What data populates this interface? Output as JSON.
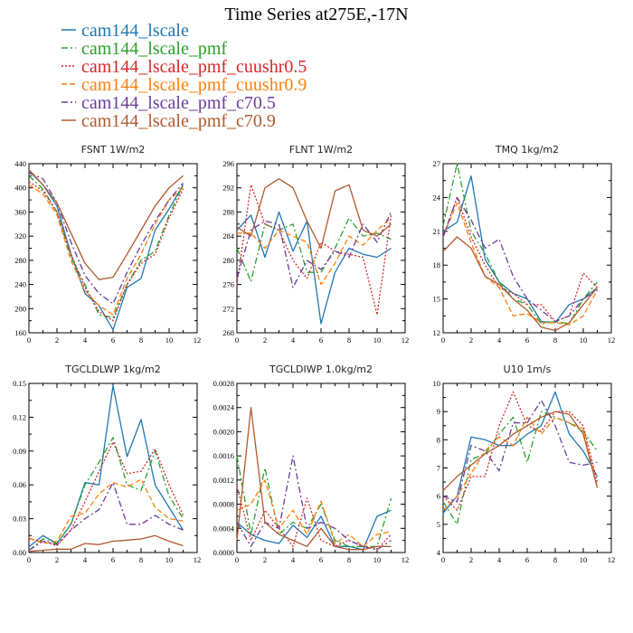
{
  "title": "Time Series at275E,-17N",
  "colors": {
    "cam144_lscale": "#1f77b4",
    "cam144_lscale_pmf": "#2ca02c",
    "cam144_lscale_pmf_cuushr0.5": "#d62728",
    "cam144_lscale_pmf_cuushr0.9": "#ff7f0e",
    "cam144_lscale_pmf_c70.5": "#6a3d9a",
    "cam144_lscale_pmf_c70.9": "#b05a2e"
  },
  "legend": [
    {
      "label": "cam144_lscale",
      "color": "#1f77b4",
      "dash": "solid"
    },
    {
      "label": "cam144_lscale_pmf",
      "color": "#2ca02c",
      "dash": "dashdot"
    },
    {
      "label": "cam144_lscale_pmf_cuushr0.5",
      "color": "#d62728",
      "dash": "dotted"
    },
    {
      "label": "cam144_lscale_pmf_cuushr0.9",
      "color": "#ff7f0e",
      "dash": "dashed"
    },
    {
      "label": "cam144_lscale_pmf_c70.5",
      "color": "#6a3d9a",
      "dash": "dashdot"
    },
    {
      "label": "cam144_lscale_pmf_c70.9",
      "color": "#b05a2e",
      "dash": "solid"
    }
  ],
  "chart_data": [
    {
      "type": "line",
      "title": "FSNT   1W/m2",
      "x": [
        0,
        1,
        2,
        3,
        4,
        5,
        6,
        7,
        8,
        9,
        10,
        11
      ],
      "xlim": [
        0,
        12
      ],
      "xticks": [
        "0",
        "2",
        "4",
        "6",
        "8",
        "10",
        "12"
      ],
      "ylim": [
        160,
        440
      ],
      "yticks": [
        "160",
        "200",
        "240",
        "280",
        "320",
        "360",
        "400",
        "440"
      ],
      "series": [
        {
          "name": "cam144_lscale",
          "values": [
            428,
            405,
            370,
            290,
            225,
            205,
            165,
            235,
            250,
            330,
            365,
            405
          ]
        },
        {
          "name": "cam144_lscale_pmf",
          "values": [
            420,
            398,
            360,
            285,
            240,
            190,
            185,
            240,
            280,
            295,
            355,
            405
          ]
        },
        {
          "name": "cam144_lscale_pmf_cuushr0.5",
          "values": [
            410,
            395,
            360,
            290,
            235,
            195,
            180,
            240,
            275,
            290,
            350,
            398
          ]
        },
        {
          "name": "cam144_lscale_pmf_cuushr0.9",
          "values": [
            405,
            390,
            355,
            280,
            230,
            205,
            190,
            250,
            290,
            340,
            380,
            400
          ]
        },
        {
          "name": "cam144_lscale_pmf_c70.5",
          "values": [
            425,
            415,
            375,
            310,
            255,
            225,
            208,
            260,
            305,
            345,
            380,
            408
          ]
        },
        {
          "name": "cam144_lscale_pmf_c70.9",
          "values": [
            430,
            405,
            375,
            325,
            275,
            248,
            252,
            290,
            330,
            370,
            400,
            420
          ]
        }
      ]
    },
    {
      "type": "line",
      "title": "FLNT   1W/m2",
      "x": [
        0,
        1,
        2,
        3,
        4,
        5,
        6,
        7,
        8,
        9,
        10,
        11
      ],
      "xlim": [
        0,
        12
      ],
      "xticks": [
        "0",
        "2",
        "4",
        "6",
        "8",
        "10",
        "12"
      ],
      "ylim": [
        268,
        296
      ],
      "yticks": [
        "268",
        "272",
        "276",
        "280",
        "284",
        "288",
        "292",
        "296"
      ],
      "series": [
        {
          "name": "cam144_lscale",
          "values": [
            285,
            287.5,
            280.5,
            288,
            281.5,
            286.5,
            269.5,
            278,
            282,
            281,
            280.5,
            282
          ]
        },
        {
          "name": "cam144_lscale_pmf",
          "values": [
            282,
            276.5,
            286,
            285,
            286,
            278,
            278,
            282,
            287,
            284,
            284.5,
            283.5
          ]
        },
        {
          "name": "cam144_lscale_pmf_cuushr0.5",
          "values": [
            276,
            292.5,
            286,
            285,
            280,
            277,
            283,
            281.5,
            281,
            280.5,
            271,
            287.5
          ]
        },
        {
          "name": "cam144_lscale_pmf_cuushr0.9",
          "values": [
            284.5,
            284.5,
            282,
            285,
            284,
            283,
            276,
            279.5,
            284,
            282.5,
            285,
            287
          ]
        },
        {
          "name": "cam144_lscale_pmf_c70.5",
          "values": [
            277,
            285,
            286.5,
            286,
            275.5,
            280,
            278.5,
            281.5,
            280.5,
            286,
            283,
            288
          ]
        },
        {
          "name": "cam144_lscale_pmf_c70.9",
          "values": [
            285.5,
            284,
            292,
            293.5,
            292,
            286.5,
            282,
            291.5,
            292.5,
            285,
            284,
            286
          ]
        }
      ]
    },
    {
      "type": "line",
      "title": "TMQ   1kg/m2",
      "x": [
        0,
        1,
        2,
        3,
        4,
        5,
        6,
        7,
        8,
        9,
        10,
        11
      ],
      "xlim": [
        0,
        12
      ],
      "xticks": [
        "0",
        "2",
        "4",
        "6",
        "8",
        "10",
        "12"
      ],
      "ylim": [
        12,
        27
      ],
      "yticks": [
        "12",
        "15",
        "18",
        "21",
        "24",
        "27"
      ],
      "series": [
        {
          "name": "cam144_lscale",
          "values": [
            21,
            21.8,
            25.9,
            18.5,
            16.5,
            15.5,
            15,
            13,
            12.9,
            14.5,
            15,
            16
          ]
        },
        {
          "name": "cam144_lscale_pmf",
          "values": [
            21.5,
            27,
            21,
            19,
            16.5,
            15,
            14.5,
            12.8,
            13,
            12.8,
            15,
            16.5
          ]
        },
        {
          "name": "cam144_lscale_pmf_cuushr0.5",
          "values": [
            20.5,
            24,
            20.5,
            18,
            16,
            15.5,
            14.5,
            14.5,
            13,
            13.5,
            17.3,
            16
          ]
        },
        {
          "name": "cam144_lscale_pmf_cuushr0.9",
          "values": [
            20.5,
            23.5,
            20,
            17,
            16,
            13.5,
            13.7,
            12.9,
            12.9,
            12.7,
            13.5,
            15.8
          ]
        },
        {
          "name": "cam144_lscale_pmf_c70.5",
          "values": [
            20.5,
            24,
            22,
            19.5,
            20.3,
            17,
            15,
            14,
            13,
            13.5,
            15,
            15.8
          ]
        },
        {
          "name": "cam144_lscale_pmf_c70.9",
          "values": [
            19.2,
            20.5,
            19.5,
            17,
            16.3,
            15,
            14,
            12.5,
            12.2,
            12.9,
            14.5,
            16
          ]
        }
      ]
    },
    {
      "type": "line",
      "title": "TGCLDLWP   1kg/m2",
      "x": [
        0,
        1,
        2,
        3,
        4,
        5,
        6,
        7,
        8,
        9,
        10,
        11
      ],
      "xlim": [
        0,
        12
      ],
      "xticks": [
        "0",
        "2",
        "4",
        "6",
        "8",
        "10",
        "12"
      ],
      "ylim": [
        0,
        0.15
      ],
      "yticks": [
        "0.00",
        "0.03",
        "0.06",
        "0.09",
        "0.12",
        "0.15"
      ],
      "series": [
        {
          "name": "cam144_lscale",
          "values": [
            0.005,
            0.015,
            0.008,
            0.025,
            0.062,
            0.06,
            0.148,
            0.085,
            0.118,
            0.06,
            0.04,
            0.02
          ]
        },
        {
          "name": "cam144_lscale_pmf",
          "values": [
            0.002,
            0.012,
            0.008,
            0.025,
            0.06,
            0.08,
            0.102,
            0.06,
            0.055,
            0.09,
            0.05,
            0.03
          ]
        },
        {
          "name": "cam144_lscale_pmf_cuushr0.5",
          "values": [
            0.012,
            0.01,
            0.006,
            0.02,
            0.045,
            0.072,
            0.098,
            0.07,
            0.072,
            0.092,
            0.06,
            0.033
          ]
        },
        {
          "name": "cam144_lscale_pmf_cuushr0.9",
          "values": [
            0.013,
            0.008,
            0.01,
            0.032,
            0.035,
            0.052,
            0.062,
            0.058,
            0.065,
            0.04,
            0.03,
            0.028
          ]
        },
        {
          "name": "cam144_lscale_pmf_c70.5",
          "values": [
            0.002,
            0.01,
            0.007,
            0.02,
            0.03,
            0.038,
            0.062,
            0.025,
            0.025,
            0.033,
            0.025,
            0.02
          ]
        },
        {
          "name": "cam144_lscale_pmf_c70.9",
          "values": [
            0.001,
            0.002,
            0.003,
            0.003,
            0.008,
            0.007,
            0.01,
            0.011,
            0.012,
            0.015,
            0.01,
            0.006
          ]
        }
      ]
    },
    {
      "type": "line",
      "title": "TGCLDIWP   1.0kg/m2",
      "x": [
        0,
        1,
        2,
        3,
        4,
        5,
        6,
        7,
        8,
        9,
        10,
        11
      ],
      "xlim": [
        0,
        12
      ],
      "xticks": [
        "0",
        "2",
        "4",
        "6",
        "8",
        "10",
        "12"
      ],
      "ylim": [
        0,
        0.0028
      ],
      "yticks": [
        "0.0000",
        "0.0004",
        "0.0008",
        "0.0012",
        "0.0016",
        "0.0020",
        "0.0024",
        "0.0028"
      ],
      "series": [
        {
          "name": "cam144_lscale",
          "values": [
            0.0005,
            0.0003,
            0.0002,
            0.00015,
            0.00045,
            0.00025,
            0.0006,
            0.0001,
            0.0001,
            5e-05,
            0.0006,
            0.0007
          ]
        },
        {
          "name": "cam144_lscale_pmf",
          "values": [
            0.0016,
            0.0003,
            0.0014,
            0.0003,
            0.0005,
            0.0004,
            0.0008,
            0.0002,
            0.0001,
            0.0001,
            0.0001,
            0.0009
          ]
        },
        {
          "name": "cam144_lscale_pmf_cuushr0.5",
          "values": [
            0.0011,
            0.0002,
            0.0007,
            0.0004,
            0.0001,
            0.0009,
            0.0002,
            0.0001,
            0.0002,
            0.0001,
            5e-05,
            0.0003
          ]
        },
        {
          "name": "cam144_lscale_pmf_cuushr0.9",
          "values": [
            0.0007,
            0.0008,
            0.0012,
            0.0004,
            0.0007,
            0.0003,
            0.00085,
            0.00015,
            0.0003,
            0.0001,
            0.0003,
            0.00035
          ]
        },
        {
          "name": "cam144_lscale_pmf_c70.5",
          "values": [
            0.0005,
            0.0001,
            0.0005,
            0.0004,
            0.0016,
            0.0004,
            0.0005,
            0.0004,
            0.0002,
            0.0001,
            5e-05,
            0.0002
          ]
        },
        {
          "name": "cam144_lscale_pmf_c70.9",
          "values": [
            0.0002,
            0.0024,
            0.0005,
            0.0003,
            0.0002,
            0.0001,
            0.0004,
            0.0001,
            5e-05,
            5e-05,
            0.0001,
            0.0001
          ]
        }
      ]
    },
    {
      "type": "line",
      "title": "U10   1m/s",
      "x": [
        0,
        1,
        2,
        3,
        4,
        5,
        6,
        7,
        8,
        9,
        10,
        11
      ],
      "xlim": [
        0,
        12
      ],
      "xticks": [
        "0",
        "2",
        "4",
        "6",
        "8",
        "10",
        "12"
      ],
      "ylim": [
        4,
        10
      ],
      "yticks": [
        "4",
        "5",
        "6",
        "7",
        "8",
        "9",
        "10"
      ],
      "series": [
        {
          "name": "cam144_lscale",
          "values": [
            5.4,
            6,
            8.1,
            8,
            7.8,
            7.8,
            8.2,
            8.5,
            9.7,
            8.2,
            7.6,
            6.7
          ]
        },
        {
          "name": "cam144_lscale_pmf",
          "values": [
            5.8,
            5,
            7.3,
            7.5,
            8.2,
            8.8,
            7.2,
            9,
            8.8,
            8.6,
            8.3,
            7.6
          ]
        },
        {
          "name": "cam144_lscale_pmf_cuushr0.5",
          "values": [
            6,
            5.5,
            6.7,
            6.7,
            8.5,
            9.7,
            8.5,
            8.3,
            9,
            9,
            8.5,
            6.5
          ]
        },
        {
          "name": "cam144_lscale_pmf_cuushr0.9",
          "values": [
            5.5,
            6,
            6.8,
            7.6,
            8.1,
            7.8,
            8.8,
            8.2,
            8.8,
            8.6,
            8.4,
            6.3
          ]
        },
        {
          "name": "cam144_lscale_pmf_c70.5",
          "values": [
            6,
            5.8,
            7.8,
            7.6,
            6.9,
            8.6,
            8.6,
            9.4,
            8.5,
            7.2,
            7.1,
            7.2
          ]
        },
        {
          "name": "cam144_lscale_pmf_c70.9",
          "values": [
            6.2,
            6.7,
            7.1,
            7.5,
            7.8,
            8.2,
            8.5,
            8.8,
            9,
            8.9,
            8.2,
            6.3
          ]
        }
      ]
    }
  ]
}
